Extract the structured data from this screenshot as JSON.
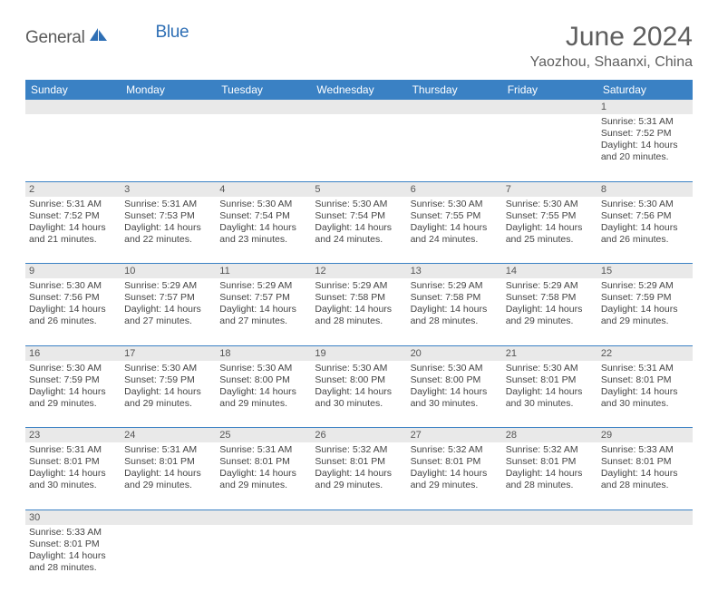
{
  "logo": {
    "text1": "General",
    "text2": "Blue"
  },
  "title": "June 2024",
  "location": "Yaozhou, Shaanxi, China",
  "colors": {
    "header_bg": "#3a81c4",
    "header_text": "#ffffff",
    "daynum_bg": "#e9e9e9",
    "border": "#3a81c4",
    "logo_gray": "#5a5a5a",
    "logo_blue": "#2e6fb5"
  },
  "days_of_week": [
    "Sunday",
    "Monday",
    "Tuesday",
    "Wednesday",
    "Thursday",
    "Friday",
    "Saturday"
  ],
  "weeks": [
    [
      null,
      null,
      null,
      null,
      null,
      null,
      {
        "n": "1",
        "sr": "Sunrise: 5:31 AM",
        "ss": "Sunset: 7:52 PM",
        "d1": "Daylight: 14 hours",
        "d2": "and 20 minutes."
      }
    ],
    [
      {
        "n": "2",
        "sr": "Sunrise: 5:31 AM",
        "ss": "Sunset: 7:52 PM",
        "d1": "Daylight: 14 hours",
        "d2": "and 21 minutes."
      },
      {
        "n": "3",
        "sr": "Sunrise: 5:31 AM",
        "ss": "Sunset: 7:53 PM",
        "d1": "Daylight: 14 hours",
        "d2": "and 22 minutes."
      },
      {
        "n": "4",
        "sr": "Sunrise: 5:30 AM",
        "ss": "Sunset: 7:54 PM",
        "d1": "Daylight: 14 hours",
        "d2": "and 23 minutes."
      },
      {
        "n": "5",
        "sr": "Sunrise: 5:30 AM",
        "ss": "Sunset: 7:54 PM",
        "d1": "Daylight: 14 hours",
        "d2": "and 24 minutes."
      },
      {
        "n": "6",
        "sr": "Sunrise: 5:30 AM",
        "ss": "Sunset: 7:55 PM",
        "d1": "Daylight: 14 hours",
        "d2": "and 24 minutes."
      },
      {
        "n": "7",
        "sr": "Sunrise: 5:30 AM",
        "ss": "Sunset: 7:55 PM",
        "d1": "Daylight: 14 hours",
        "d2": "and 25 minutes."
      },
      {
        "n": "8",
        "sr": "Sunrise: 5:30 AM",
        "ss": "Sunset: 7:56 PM",
        "d1": "Daylight: 14 hours",
        "d2": "and 26 minutes."
      }
    ],
    [
      {
        "n": "9",
        "sr": "Sunrise: 5:30 AM",
        "ss": "Sunset: 7:56 PM",
        "d1": "Daylight: 14 hours",
        "d2": "and 26 minutes."
      },
      {
        "n": "10",
        "sr": "Sunrise: 5:29 AM",
        "ss": "Sunset: 7:57 PM",
        "d1": "Daylight: 14 hours",
        "d2": "and 27 minutes."
      },
      {
        "n": "11",
        "sr": "Sunrise: 5:29 AM",
        "ss": "Sunset: 7:57 PM",
        "d1": "Daylight: 14 hours",
        "d2": "and 27 minutes."
      },
      {
        "n": "12",
        "sr": "Sunrise: 5:29 AM",
        "ss": "Sunset: 7:58 PM",
        "d1": "Daylight: 14 hours",
        "d2": "and 28 minutes."
      },
      {
        "n": "13",
        "sr": "Sunrise: 5:29 AM",
        "ss": "Sunset: 7:58 PM",
        "d1": "Daylight: 14 hours",
        "d2": "and 28 minutes."
      },
      {
        "n": "14",
        "sr": "Sunrise: 5:29 AM",
        "ss": "Sunset: 7:58 PM",
        "d1": "Daylight: 14 hours",
        "d2": "and 29 minutes."
      },
      {
        "n": "15",
        "sr": "Sunrise: 5:29 AM",
        "ss": "Sunset: 7:59 PM",
        "d1": "Daylight: 14 hours",
        "d2": "and 29 minutes."
      }
    ],
    [
      {
        "n": "16",
        "sr": "Sunrise: 5:30 AM",
        "ss": "Sunset: 7:59 PM",
        "d1": "Daylight: 14 hours",
        "d2": "and 29 minutes."
      },
      {
        "n": "17",
        "sr": "Sunrise: 5:30 AM",
        "ss": "Sunset: 7:59 PM",
        "d1": "Daylight: 14 hours",
        "d2": "and 29 minutes."
      },
      {
        "n": "18",
        "sr": "Sunrise: 5:30 AM",
        "ss": "Sunset: 8:00 PM",
        "d1": "Daylight: 14 hours",
        "d2": "and 29 minutes."
      },
      {
        "n": "19",
        "sr": "Sunrise: 5:30 AM",
        "ss": "Sunset: 8:00 PM",
        "d1": "Daylight: 14 hours",
        "d2": "and 30 minutes."
      },
      {
        "n": "20",
        "sr": "Sunrise: 5:30 AM",
        "ss": "Sunset: 8:00 PM",
        "d1": "Daylight: 14 hours",
        "d2": "and 30 minutes."
      },
      {
        "n": "21",
        "sr": "Sunrise: 5:30 AM",
        "ss": "Sunset: 8:01 PM",
        "d1": "Daylight: 14 hours",
        "d2": "and 30 minutes."
      },
      {
        "n": "22",
        "sr": "Sunrise: 5:31 AM",
        "ss": "Sunset: 8:01 PM",
        "d1": "Daylight: 14 hours",
        "d2": "and 30 minutes."
      }
    ],
    [
      {
        "n": "23",
        "sr": "Sunrise: 5:31 AM",
        "ss": "Sunset: 8:01 PM",
        "d1": "Daylight: 14 hours",
        "d2": "and 30 minutes."
      },
      {
        "n": "24",
        "sr": "Sunrise: 5:31 AM",
        "ss": "Sunset: 8:01 PM",
        "d1": "Daylight: 14 hours",
        "d2": "and 29 minutes."
      },
      {
        "n": "25",
        "sr": "Sunrise: 5:31 AM",
        "ss": "Sunset: 8:01 PM",
        "d1": "Daylight: 14 hours",
        "d2": "and 29 minutes."
      },
      {
        "n": "26",
        "sr": "Sunrise: 5:32 AM",
        "ss": "Sunset: 8:01 PM",
        "d1": "Daylight: 14 hours",
        "d2": "and 29 minutes."
      },
      {
        "n": "27",
        "sr": "Sunrise: 5:32 AM",
        "ss": "Sunset: 8:01 PM",
        "d1": "Daylight: 14 hours",
        "d2": "and 29 minutes."
      },
      {
        "n": "28",
        "sr": "Sunrise: 5:32 AM",
        "ss": "Sunset: 8:01 PM",
        "d1": "Daylight: 14 hours",
        "d2": "and 28 minutes."
      },
      {
        "n": "29",
        "sr": "Sunrise: 5:33 AM",
        "ss": "Sunset: 8:01 PM",
        "d1": "Daylight: 14 hours",
        "d2": "and 28 minutes."
      }
    ],
    [
      {
        "n": "30",
        "sr": "Sunrise: 5:33 AM",
        "ss": "Sunset: 8:01 PM",
        "d1": "Daylight: 14 hours",
        "d2": "and 28 minutes."
      },
      null,
      null,
      null,
      null,
      null,
      null
    ]
  ]
}
